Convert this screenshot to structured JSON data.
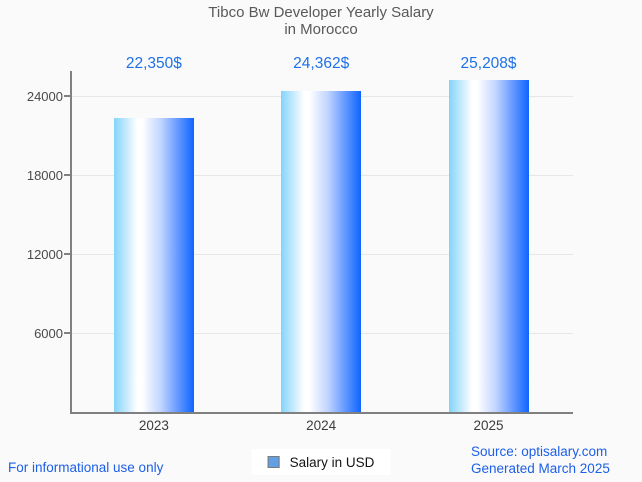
{
  "title": {
    "line1": "Tibco Bw Developer Yearly Salary",
    "line2": "in Morocco"
  },
  "chart_data": {
    "type": "bar",
    "categories": [
      "2023",
      "2024",
      "2025"
    ],
    "series": [
      {
        "name": "Salary in USD",
        "values": [
          22350,
          24362,
          25208
        ]
      }
    ],
    "value_labels": [
      "22,350$",
      "24,362$",
      "25,208$"
    ],
    "yticks": [
      6000,
      12000,
      18000,
      24000
    ],
    "ylim": [
      0,
      26000
    ],
    "grid": true,
    "legend_position": "bottom-center",
    "title": "Tibco Bw Developer Yearly Salary in Morocco",
    "xlabel": "",
    "ylabel": ""
  },
  "legend": {
    "label": "Salary in USD",
    "marker_color": "#62a0e3"
  },
  "footer": {
    "left": "For informational use only",
    "source_line1": "Source: optisalary.com",
    "source_line2": "Generated March 2025"
  },
  "colors": {
    "background": "#fafafa",
    "bar_gradient_left": "#84d3fb",
    "bar_gradient_mid": "#ffffff",
    "bar_gradient_right": "#0e65ff",
    "value_label": "#1e70e8",
    "footer_link": "#1c5fe8",
    "axis": "#808080",
    "gridline": "#e7e7e7",
    "title_text": "#595959"
  }
}
